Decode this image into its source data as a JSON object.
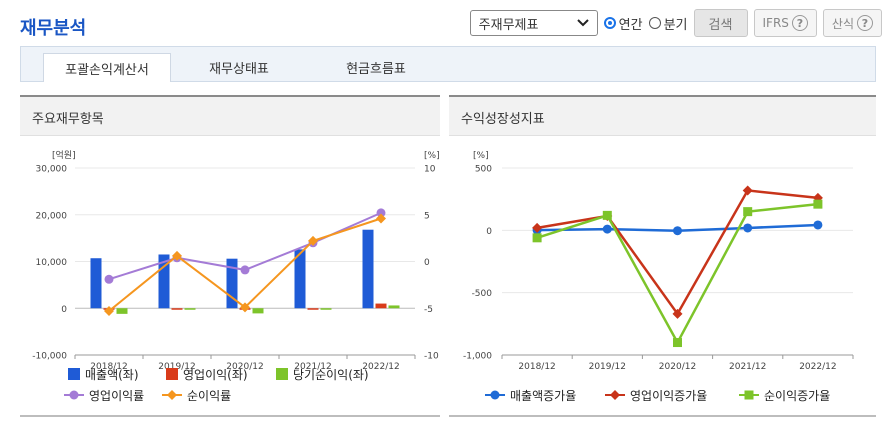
{
  "header": {
    "title": "재무분석",
    "select_value": "주재무제표",
    "radio_annual": "연간",
    "radio_quarter": "분기",
    "search_label": "검색",
    "ifrs_label": "IFRS",
    "formula_label": "산식",
    "help_glyph": "?"
  },
  "tabs": [
    {
      "label": "포괄손익계산서"
    },
    {
      "label": "재무상태표"
    },
    {
      "label": "현금흐름표"
    }
  ],
  "left_panel": {
    "title": "주요재무항목",
    "chart_data": {
      "type": "bar",
      "title": "주요재무항목",
      "left_unit": "[억원]",
      "right_unit": "[%]",
      "categories": [
        "2018/12",
        "2019/12",
        "2020/12",
        "2021/12",
        "2022/12"
      ],
      "y_left_ticks": [
        "30,000",
        "20,000",
        "10,000",
        "0",
        "-10,000"
      ],
      "y_right_ticks": [
        "10",
        "5",
        "0",
        "-5",
        "-10"
      ],
      "ylim_left": [
        -10000,
        30000
      ],
      "ylim_right": [
        -10,
        10
      ],
      "series": [
        {
          "name": "매출액(좌)",
          "kind": "bar",
          "axis": "left",
          "color": "#1f5bd6",
          "values": [
            10700,
            11500,
            10600,
            12600,
            16800
          ]
        },
        {
          "name": "영업이익(좌)",
          "kind": "bar",
          "axis": "left",
          "color": "#d93b1a",
          "values": [
            -100,
            -300,
            -100,
            -200,
            1000
          ]
        },
        {
          "name": "당기순이익(좌)",
          "kind": "bar",
          "axis": "left",
          "color": "#7dc42a",
          "values": [
            -1200,
            -300,
            -1100,
            -200,
            600
          ]
        },
        {
          "name": "영업이익률",
          "kind": "line",
          "axis": "right",
          "color": "#a47bd6",
          "marker": "circle",
          "values": [
            -1.9,
            0.4,
            -0.9,
            2.0,
            5.2
          ]
        },
        {
          "name": "순이익률",
          "kind": "line",
          "axis": "right",
          "color": "#f5961f",
          "marker": "diamond",
          "values": [
            -5.3,
            0.6,
            -4.9,
            2.2,
            4.6
          ]
        }
      ]
    }
  },
  "right_panel": {
    "title": "수익성장성지표",
    "chart_data": {
      "type": "line",
      "title": "수익성장성지표",
      "unit": "[%]",
      "categories": [
        "2018/12",
        "2019/12",
        "2020/12",
        "2021/12",
        "2022/12"
      ],
      "y_ticks": [
        "500",
        "0",
        "-500",
        "-1,000"
      ],
      "ylim": [
        -1000,
        500
      ],
      "series": [
        {
          "name": "매출액증가율",
          "color": "#1f6bd6",
          "marker": "circle",
          "values": [
            2,
            10,
            -3,
            19,
            43
          ]
        },
        {
          "name": "영업이익증가율",
          "color": "#c8341a",
          "marker": "diamond",
          "values": [
            20,
            115,
            -670,
            320,
            260
          ]
        },
        {
          "name": "순이익증가율",
          "color": "#7dc42a",
          "marker": "square",
          "values": [
            -60,
            120,
            -900,
            150,
            210
          ]
        }
      ]
    }
  }
}
